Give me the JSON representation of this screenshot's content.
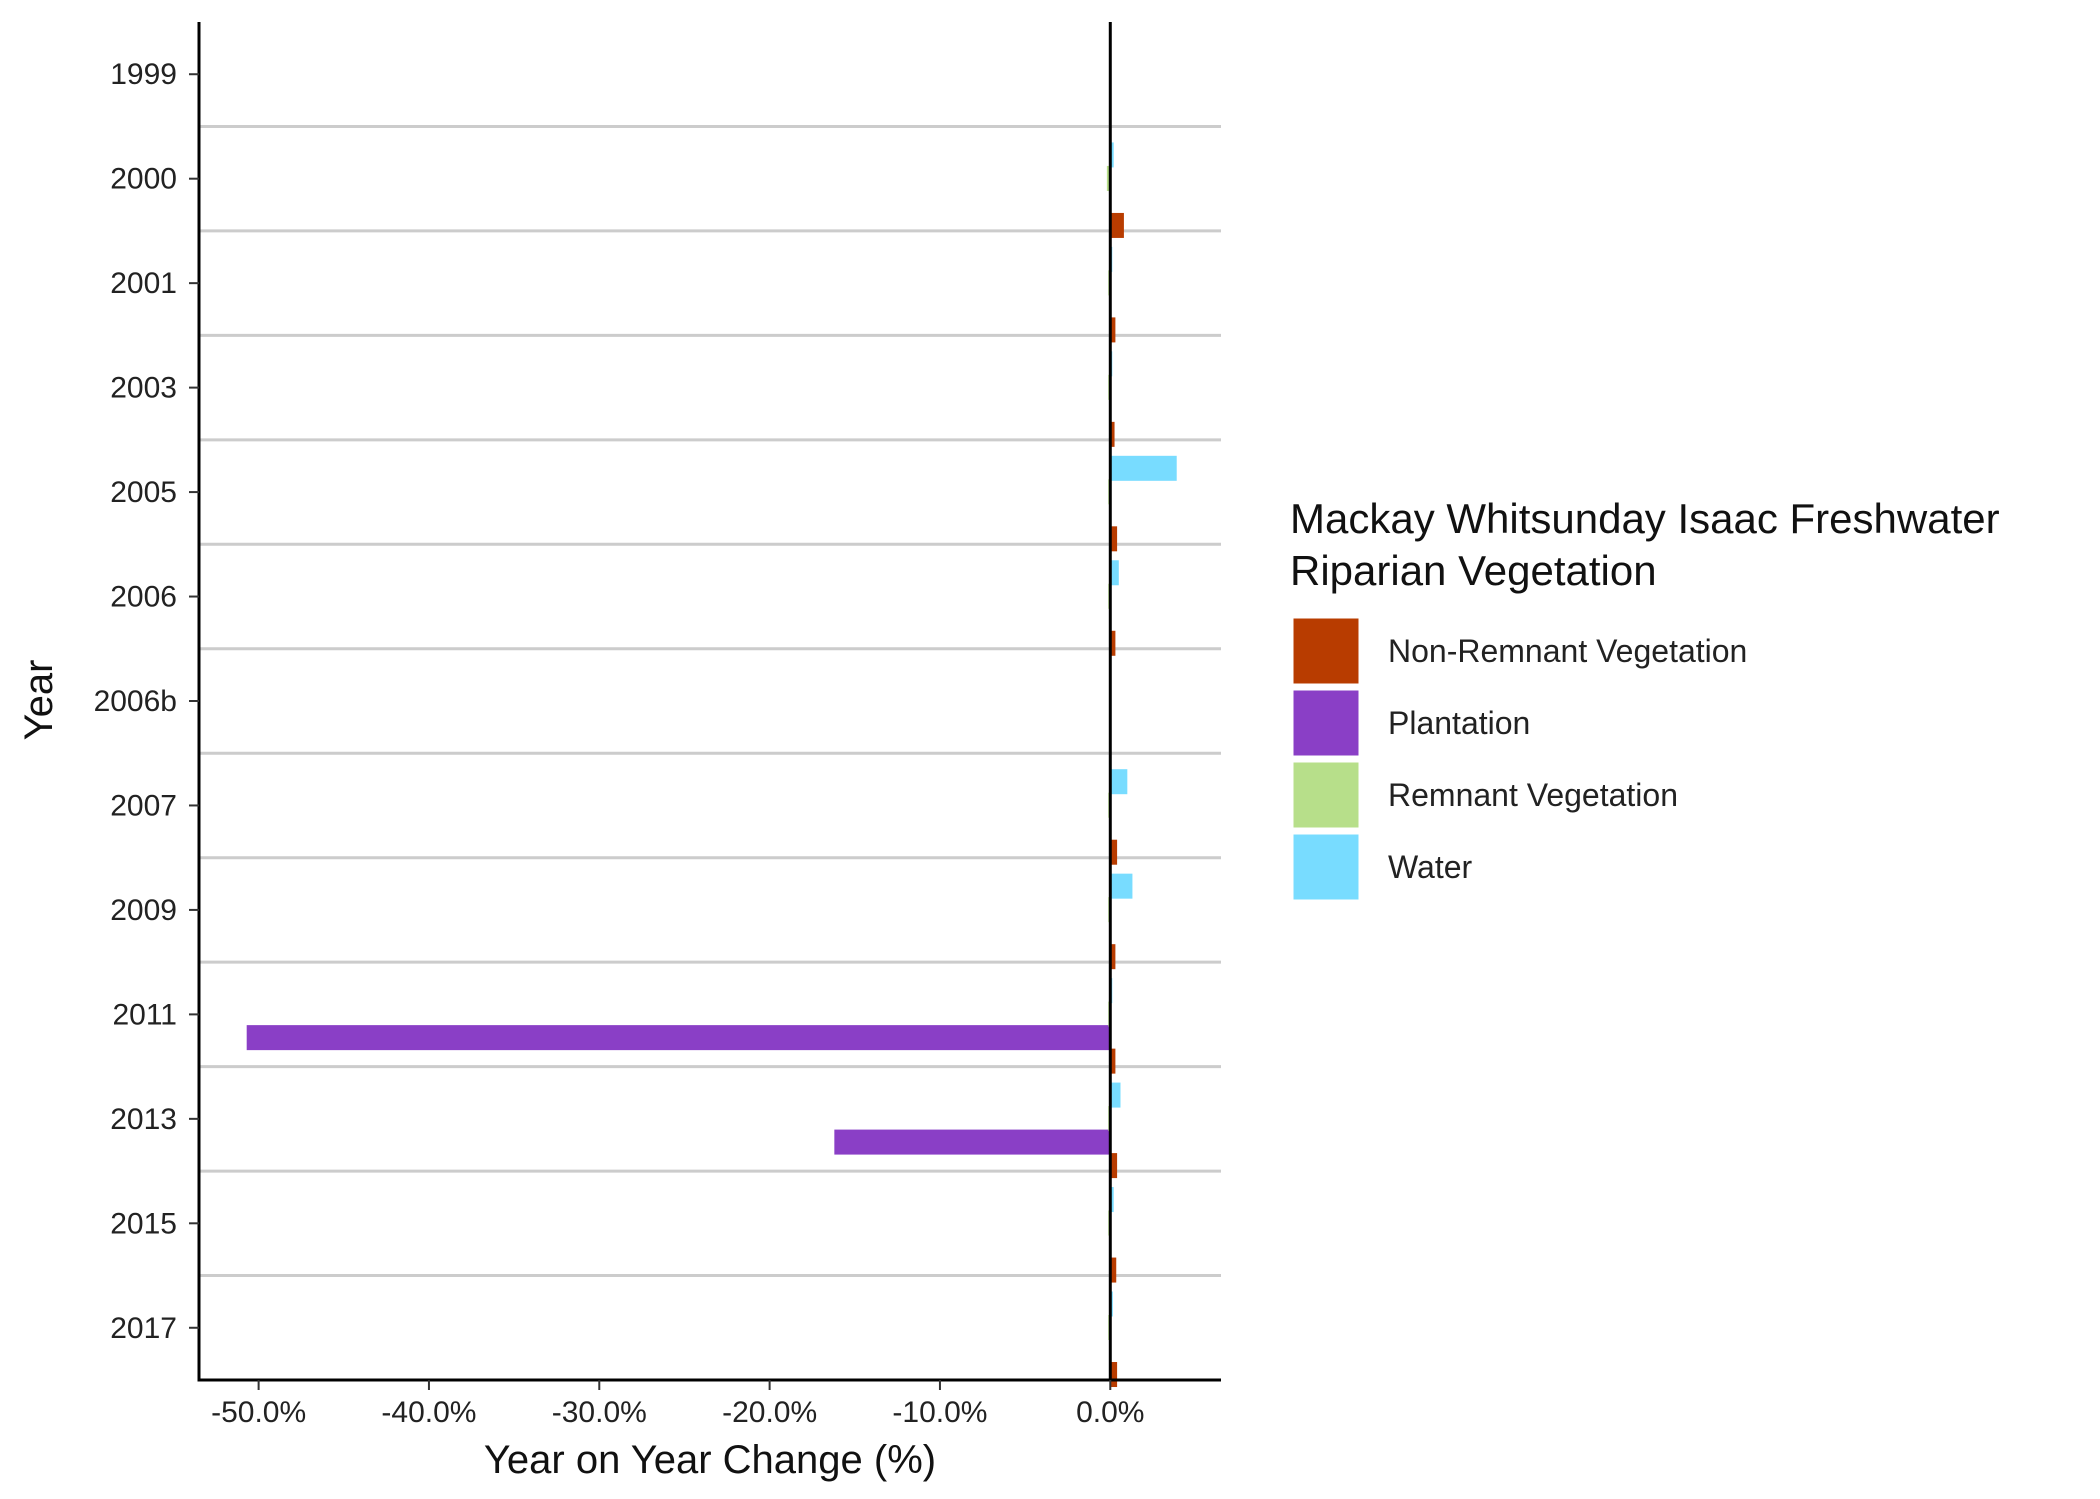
{
  "chart_data": {
    "type": "bar",
    "orientation": "horizontal",
    "categories": [
      "1999",
      "2000",
      "2001",
      "2003",
      "2005",
      "2006",
      "2006b",
      "2007",
      "2009",
      "2011",
      "2013",
      "2015",
      "2017"
    ],
    "xlabel": "Year on Year Change (%)",
    "ylabel": "Year",
    "xlim": [
      -53.5,
      6.5
    ],
    "x_ticks": [
      -50,
      -40,
      -30,
      -20,
      -10,
      0
    ],
    "x_tick_labels": [
      "-50.0%",
      "-40.0%",
      "-30.0%",
      "-20.0%",
      "-10.0%",
      "0.0%"
    ],
    "grid": "horizontal separators between categories",
    "legend": {
      "title": [
        "Mackay Whitsunday Isaac Freshwater",
        "Riparian Vegetation"
      ],
      "position": "right"
    },
    "series": [
      {
        "name": "Non-Remnant Vegetation",
        "color": "#B83C00",
        "values": [
          null,
          0.8,
          0.3,
          0.25,
          0.4,
          0.3,
          null,
          0.4,
          0.3,
          0.3,
          0.4,
          0.35,
          0.4
        ]
      },
      {
        "name": "Plantation",
        "color": "#8A3FC6",
        "values": [
          null,
          null,
          null,
          null,
          null,
          null,
          null,
          null,
          null,
          -50.7,
          -16.2,
          null,
          null
        ]
      },
      {
        "name": "Remnant Vegetation",
        "color": "#B7DF8A",
        "values": [
          null,
          -0.2,
          -0.05,
          -0.03,
          -0.05,
          -0.03,
          null,
          -0.05,
          -0.04,
          -0.05,
          -0.05,
          -0.03,
          -0.04
        ]
      },
      {
        "name": "Water",
        "color": "#78DCFF",
        "values": [
          null,
          0.2,
          0.1,
          0.05,
          3.9,
          0.5,
          null,
          1.0,
          1.3,
          0.1,
          0.6,
          0.2,
          0.15
        ]
      }
    ]
  }
}
